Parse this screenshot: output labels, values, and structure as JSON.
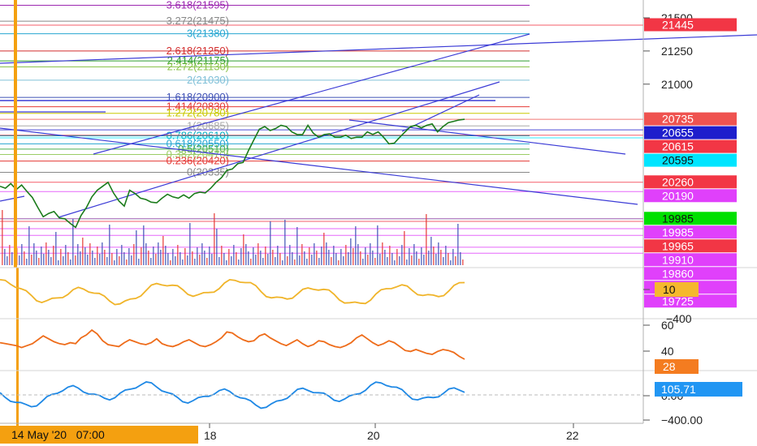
{
  "chart_data": {
    "type": "line",
    "title": "",
    "main": {
      "ylim": [
        19690,
        21610
      ],
      "axis_ticks": [
        "21500",
        "21250",
        "21000"
      ],
      "fib_levels": [
        {
          "label": "3.618(21595)",
          "value": 21595,
          "color": "#9c27b0"
        },
        {
          "label": "3.272(21475)",
          "value": 21475,
          "color": "#888888"
        },
        {
          "label": "3(21380)",
          "value": 21380,
          "color": "#26a6d1"
        },
        {
          "label": "2.618(21250)",
          "value": 21250,
          "color": "#d32f2f"
        },
        {
          "label": "2.414(21175)",
          "value": 21175,
          "color": "#2e9e2e"
        },
        {
          "label": "2.272(21130)",
          "value": 21130,
          "color": "#8bc34a"
        },
        {
          "label": "2(21030)",
          "value": 21030,
          "color": "#80c0d8"
        },
        {
          "label": "1.618(20900)",
          "value": 20900,
          "color": "#3f51b5"
        },
        {
          "label": "1.414(20830)",
          "value": 20830,
          "color": "#e53935"
        },
        {
          "label": "1.272(20780)",
          "value": 20780,
          "color": "#c8c800"
        },
        {
          "label": "1(20685)",
          "value": 20685,
          "color": "#aaaaaa"
        },
        {
          "label": "0.786(20610)",
          "value": 20610,
          "color": "#00acc1"
        },
        {
          "label": "0.618(20550)",
          "value": 20550,
          "color": "#26a6d1"
        },
        {
          "label": "0.5(20510)",
          "value": 20510,
          "color": "#4caf50"
        },
        {
          "label": "0.382(20470)",
          "value": 20470,
          "color": "#9ccc65"
        },
        {
          "label": "0.236(20420)",
          "value": 20420,
          "color": "#e53935"
        },
        {
          "label": "0(20335)",
          "value": 20335,
          "color": "#888888"
        }
      ],
      "price_tags": [
        {
          "label": "21445",
          "value": 21445,
          "bg": "#f23645",
          "fg": "#ffffff"
        },
        {
          "label": "20735",
          "value": 20735,
          "bg": "#ef5350",
          "fg": "#ffffff"
        },
        {
          "label": "20655",
          "value": 20655,
          "bg": "#1e1ecc",
          "fg": "#ffffff"
        },
        {
          "label": "20615",
          "value": 20615,
          "bg": "#f23645",
          "fg": "#ffffff"
        },
        {
          "label": "20595",
          "value": 20595,
          "bg": "#00e5ff",
          "fg": "#111111"
        },
        {
          "label": "20260",
          "value": 20260,
          "bg": "#f23645",
          "fg": "#ffffff"
        },
        {
          "label": "20190",
          "value": 20190,
          "bg": "#e040fb",
          "fg": "#ffffff"
        },
        {
          "label": "19985",
          "value": 19985,
          "bg": "#00e000",
          "fg": "#111111"
        },
        {
          "label": "19985",
          "value": 19985,
          "bg": "#e040fb",
          "fg": "#ffffff"
        },
        {
          "label": "19965",
          "value": 19965,
          "bg": "#f23645",
          "fg": "#ffffff"
        },
        {
          "label": "19910",
          "value": 19910,
          "bg": "#e040fb",
          "fg": "#ffffff"
        },
        {
          "label": "19860",
          "value": 19860,
          "bg": "#e040fb",
          "fg": "#ffffff"
        },
        {
          "label": "19770",
          "value": 19770,
          "bg": "#e040fb",
          "fg": "#ffffff"
        },
        {
          "label": "19725",
          "value": 19725,
          "bg": "#e040fb",
          "fg": "#ffffff"
        }
      ],
      "price_series": [
        20230,
        20215,
        20250,
        20205,
        20240,
        20190,
        20145,
        20070,
        20000,
        20025,
        20040,
        19990,
        19985,
        19950,
        19920,
        20010,
        20070,
        20150,
        20200,
        20230,
        20260,
        20180,
        20120,
        20080,
        20200,
        20175,
        20140,
        20130,
        20110,
        20105,
        20140,
        20170,
        20150,
        20140,
        20165,
        20140,
        20175,
        20185,
        20180,
        20215,
        20260,
        20295,
        20350,
        20360,
        20400,
        20410,
        20500,
        20580,
        20660,
        20680,
        20650,
        20665,
        20690,
        20680,
        20640,
        20620,
        20620,
        20690,
        20630,
        20600,
        20620,
        20625,
        20600,
        20600,
        20615,
        20590,
        20600,
        20600,
        20640,
        20620,
        20640,
        20600,
        20550,
        20555,
        20600,
        20640,
        20680,
        20690,
        20670,
        20690,
        20700,
        20640,
        20680,
        20710,
        20720,
        20730,
        20735
      ]
    },
    "osc1": {
      "value_tag": "10",
      "tag_bg": "#f5b82e",
      "axis_ticks": [
        "−400"
      ],
      "color": "#f0b429"
    },
    "osc2": {
      "value_tag": "28",
      "tag_bg": "#f47c20",
      "axis_ticks": [
        "60",
        "40"
      ],
      "ylim": [
        18,
        68
      ],
      "color": "#ee6c1a",
      "values": [
        45,
        44,
        43,
        42,
        40,
        42,
        44,
        48,
        52,
        49,
        46,
        44,
        43,
        45,
        44,
        50,
        53,
        58,
        54,
        47,
        43,
        42,
        41,
        45,
        48,
        46,
        44,
        43,
        45,
        49,
        44,
        42,
        41,
        43,
        46,
        48,
        45,
        42,
        41,
        43,
        46,
        50,
        56,
        55,
        51,
        48,
        46,
        47,
        52,
        54,
        50,
        47,
        44,
        42,
        45,
        48,
        44,
        41,
        43,
        47,
        46,
        43,
        41,
        40,
        42,
        45,
        50,
        53,
        49,
        45,
        42,
        44,
        47,
        45,
        41,
        37,
        36,
        38,
        36,
        34,
        33,
        36,
        38,
        37,
        35,
        31,
        28
      ]
    },
    "osc3": {
      "value_tag": "105.71",
      "tag_bg": "#2196f3",
      "axis_ticks": [
        "0.00",
        "−400.00"
      ],
      "color": "#1e88e5"
    },
    "x_axis": {
      "date_label": "14 May '20   07:00",
      "ticks": [
        "18",
        "20",
        "22"
      ]
    }
  }
}
